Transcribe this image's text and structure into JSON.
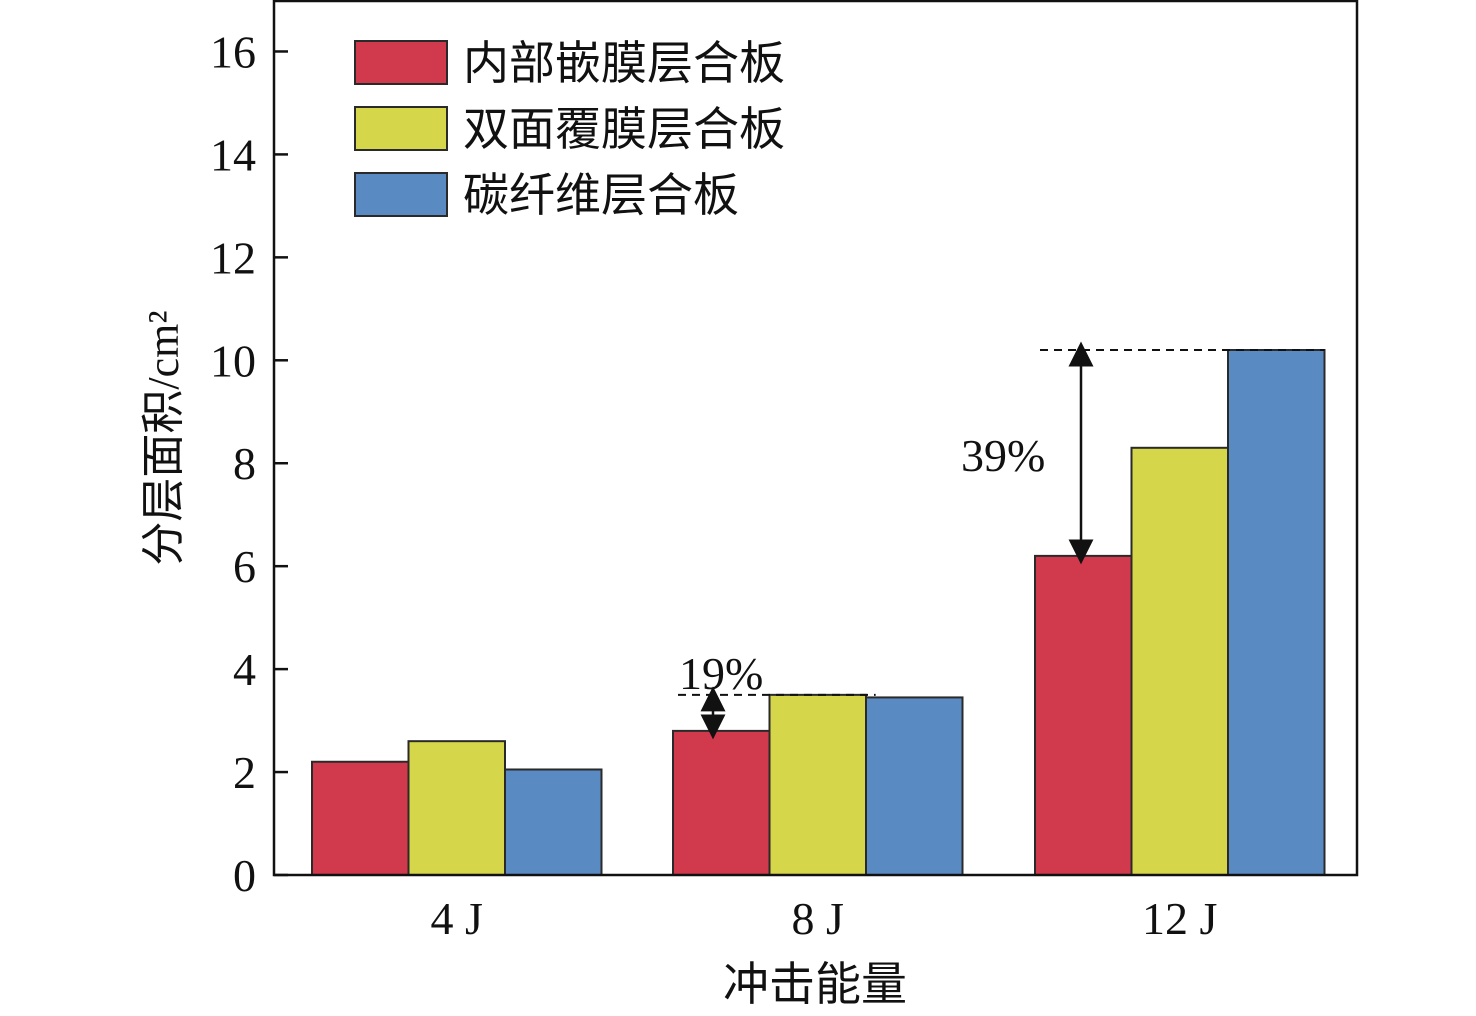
{
  "chart_data": {
    "type": "bar",
    "categories": [
      "4 J",
      "8 J",
      "12 J"
    ],
    "series": [
      {
        "name": "内部嵌膜层合板",
        "color": "#d1394c",
        "values": [
          2.2,
          2.8,
          6.2
        ]
      },
      {
        "name": "双面覆膜层合板",
        "color": "#d6d64a",
        "values": [
          2.6,
          3.5,
          8.3
        ]
      },
      {
        "name": "碳纤维层合板",
        "color": "#5a8ac2",
        "values": [
          2.05,
          3.45,
          10.2
        ]
      }
    ],
    "xlabel": "冲击能量",
    "ylabel": "分层面积/cm²",
    "ylim": [
      0,
      17
    ],
    "yticks": [
      0,
      2,
      4,
      6,
      8,
      10,
      12,
      14,
      16
    ],
    "legend_position": "top-left",
    "grid": false,
    "annotations": [
      {
        "text": "19%",
        "category": "8 J",
        "from": 2.8,
        "to": 3.5
      },
      {
        "text": "39%",
        "category": "12 J",
        "from": 6.2,
        "to": 10.2
      }
    ]
  }
}
